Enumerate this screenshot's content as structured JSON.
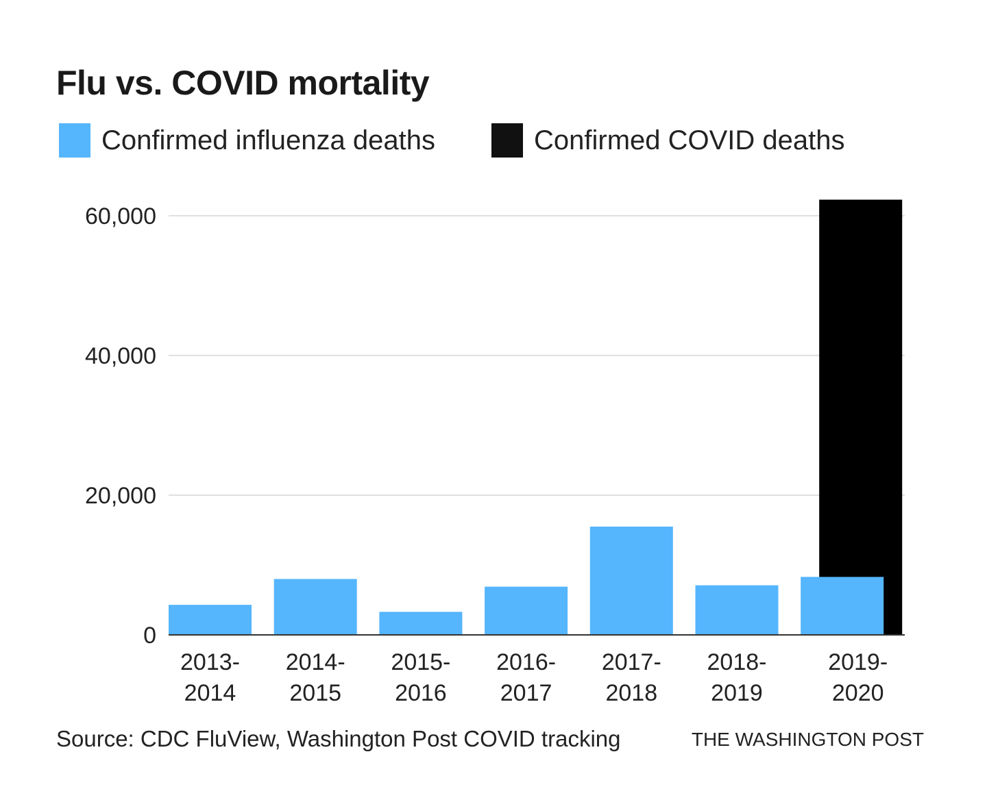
{
  "chart_data": {
    "type": "bar",
    "title": "Flu vs. COVID mortality",
    "categories": [
      "2013-2014",
      "2014-2015",
      "2015-2016",
      "2016-2017",
      "2017-2018",
      "2018-2019",
      "2019-2020"
    ],
    "category_lines": [
      [
        "2013-",
        "2014"
      ],
      [
        "2014-",
        "2015"
      ],
      [
        "2015-",
        "2016"
      ],
      [
        "2016-",
        "2017"
      ],
      [
        "2017-",
        "2018"
      ],
      [
        "2018-",
        "2019"
      ],
      [
        "2019-",
        "2020"
      ]
    ],
    "series": [
      {
        "name": "Confirmed influenza deaths",
        "color": "#55b5fd",
        "values": [
          4300,
          8000,
          3300,
          6900,
          15500,
          7100,
          8300
        ]
      },
      {
        "name": "Confirmed COVID deaths",
        "color": "#000000",
        "values": [
          null,
          null,
          null,
          null,
          null,
          null,
          62300
        ]
      }
    ],
    "yticks": [
      0,
      20000,
      40000,
      60000
    ],
    "ytick_labels": [
      "0",
      "20,000",
      "40,000",
      "60,000"
    ],
    "ylim": [
      0,
      62300
    ],
    "grid": true,
    "legend_position": "top-left",
    "xlabel": "",
    "ylabel": ""
  },
  "source": "Source: CDC FluView, Washington Post COVID tracking",
  "credit": "THE WASHINGTON POST"
}
